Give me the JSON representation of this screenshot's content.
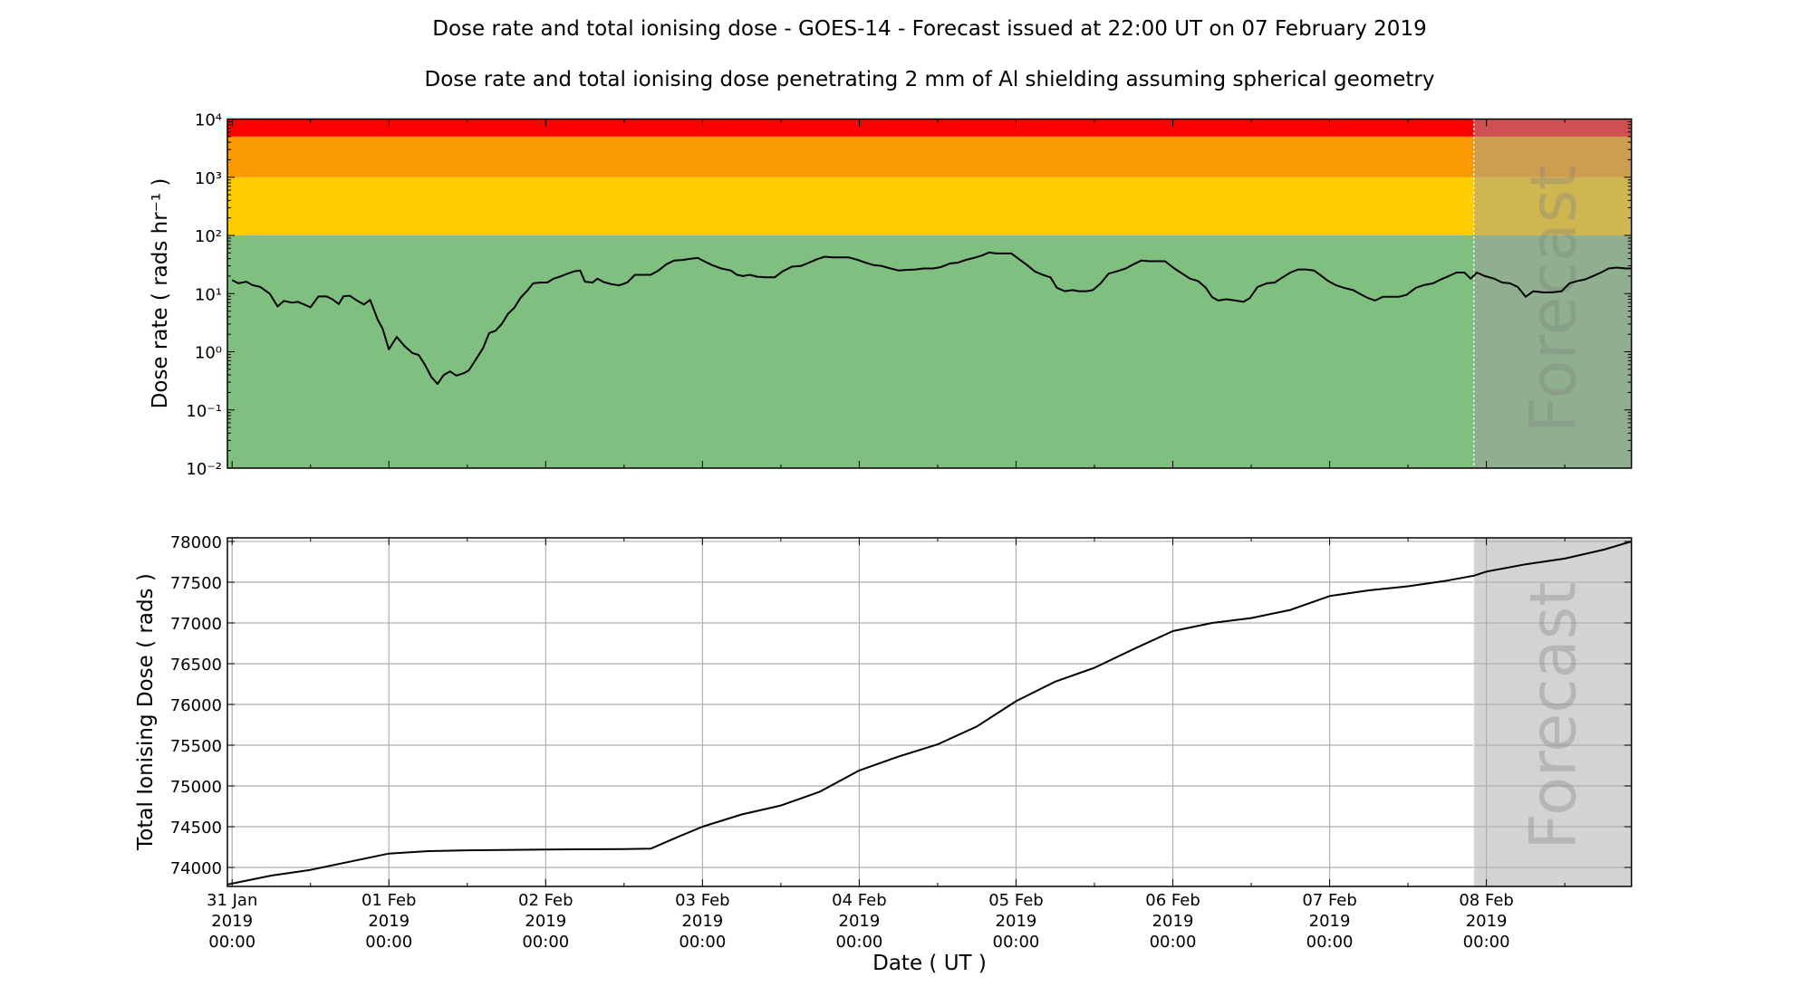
{
  "title": "Dose rate and total ionising dose - GOES-14 - Forecast issued at 22:00 UT on 07 February 2019",
  "subtitle": "Dose rate and total ionising dose penetrating 2 mm of Al shielding assuming spherical geometry",
  "forecast_label": "Forecast",
  "colors": {
    "red": "#ff0000",
    "orange": "#fb9a00",
    "yellow": "#ffcc00",
    "green": "#7fbf7f",
    "forecast_overlay": "#a0a0a0",
    "bottom_forecast": "#d3d3d3",
    "line": "#000000",
    "grid": "#b0b0b0"
  },
  "chart_data": [
    {
      "type": "line",
      "ylabel": "Dose rate ( rads hr⁻¹ )",
      "yscale": "log",
      "ylim": [
        0.01,
        10000
      ],
      "xlim_days_from_31_Jan_2019": [
        -0.03,
        8.925
      ],
      "ytick_labels": [
        "10⁻²",
        "10⁻¹",
        "10⁰",
        "10¹",
        "10²",
        "10³",
        "10⁴"
      ],
      "ytick_values": [
        0.01,
        0.1,
        1,
        10,
        100,
        1000,
        10000
      ],
      "grid": false,
      "forecast_start": "07 Feb 2019 22:00",
      "forecast_start_day": 7.92,
      "threshold_bands": [
        {
          "from": 0.01,
          "to": 100,
          "color": "#7fbf7f"
        },
        {
          "from": 100,
          "to": 1000,
          "color": "#ffcc00"
        },
        {
          "from": 1000,
          "to": 5000,
          "color": "#fb9a00"
        },
        {
          "from": 5000,
          "to": 10000,
          "color": "#ff0000"
        }
      ],
      "series": [
        {
          "x_days": [
            0,
            0.04,
            0.09,
            0.13,
            0.18,
            0.24,
            0.29,
            0.33,
            0.38,
            0.42,
            0.46,
            0.5,
            0.55,
            0.6,
            0.64,
            0.68,
            0.71,
            0.75,
            0.8,
            0.84,
            0.88,
            0.93,
            0.96,
            1.0,
            1.05,
            1.1,
            1.15,
            1.19,
            1.23,
            1.27,
            1.31,
            1.35,
            1.39,
            1.43,
            1.48,
            1.51,
            1.56,
            1.6,
            1.64,
            1.68,
            1.72,
            1.76,
            1.8,
            1.84,
            1.88,
            1.92,
            1.97,
            2.01,
            2.05,
            2.1,
            2.14,
            2.18,
            2.22,
            2.25,
            2.3,
            2.33,
            2.37,
            2.42,
            2.47,
            2.52,
            2.57,
            2.62,
            2.67,
            2.72,
            2.77,
            2.82,
            2.88,
            2.93,
            2.97,
            3.01,
            3.06,
            3.12,
            3.18,
            3.22,
            3.26,
            3.3,
            3.35,
            3.4,
            3.46,
            3.51,
            3.57,
            3.63,
            3.68,
            3.73,
            3.78,
            3.83,
            3.88,
            3.93,
            3.99,
            4.04,
            4.09,
            4.14,
            4.2,
            4.25,
            4.3,
            4.36,
            4.41,
            4.47,
            4.52,
            4.58,
            4.63,
            4.68,
            4.73,
            4.78,
            4.83,
            4.87,
            4.92,
            4.97,
            5.02,
            5.07,
            5.12,
            5.17,
            5.22,
            5.26,
            5.31,
            5.36,
            5.4,
            5.45,
            5.49,
            5.54,
            5.59,
            5.64,
            5.7,
            5.75,
            5.8,
            5.85,
            5.9,
            5.95,
            6.01,
            6.06,
            6.11,
            6.16,
            6.21,
            6.25,
            6.29,
            6.34,
            6.4,
            6.45,
            6.49,
            6.54,
            6.6,
            6.65,
            6.7,
            6.75,
            6.8,
            6.85,
            6.9,
            6.95,
            6.99,
            7.04,
            7.09,
            7.15,
            7.19,
            7.24,
            7.29,
            7.34,
            7.39,
            7.44,
            7.49,
            7.55,
            7.6,
            7.66,
            7.71,
            7.76,
            7.81,
            7.86,
            7.9,
            7.94,
            7.99,
            8.05,
            8.1,
            8.15,
            8.2,
            8.25,
            8.3,
            8.36,
            8.42,
            8.48,
            8.53,
            8.58,
            8.63,
            8.68,
            8.73,
            8.78,
            8.83,
            8.89,
            8.92
          ],
          "y": [
            17,
            15,
            16,
            14,
            13,
            10,
            6,
            7.5,
            7,
            7.2,
            6.5,
            5.8,
            8.9,
            9,
            8,
            6.6,
            9,
            9.2,
            7.5,
            6.5,
            7.8,
            3.5,
            2.5,
            1.1,
            1.8,
            1.25,
            0.95,
            0.88,
            0.6,
            0.37,
            0.28,
            0.4,
            0.46,
            0.39,
            0.43,
            0.48,
            0.78,
            1.15,
            2.1,
            2.3,
            3.0,
            4.5,
            5.7,
            8.5,
            11,
            15,
            15.5,
            15.5,
            18,
            20,
            22,
            24,
            25,
            16,
            15.5,
            18,
            15.8,
            14.5,
            13.9,
            15.5,
            21,
            21,
            21,
            25,
            32,
            37,
            38,
            40,
            41,
            36,
            31,
            27,
            25,
            21,
            20,
            21,
            19.5,
            19,
            19,
            24,
            29,
            30,
            34,
            39,
            43,
            42,
            42,
            42,
            38,
            34,
            31,
            30,
            27,
            25,
            25.5,
            26,
            27,
            27,
            28.5,
            33,
            34,
            38,
            41,
            45,
            51,
            49,
            49,
            49,
            39,
            31,
            24,
            21,
            19,
            12.6,
            11,
            11.5,
            11,
            11,
            11.5,
            15,
            22,
            24,
            27,
            32,
            37,
            36,
            36,
            36,
            27,
            22,
            18,
            16.5,
            12.6,
            8.7,
            7.6,
            8,
            7.6,
            7.2,
            8.3,
            13,
            15,
            15.5,
            19,
            23,
            26,
            26,
            25,
            20,
            16.5,
            14,
            12.6,
            11.5,
            10,
            8.5,
            7.6,
            8.8,
            8.8,
            8.8,
            9.5,
            12.6,
            14,
            15,
            17.5,
            20,
            23,
            23,
            18,
            23,
            20,
            18,
            15.5,
            15,
            13,
            8.8,
            11,
            10.5,
            10.5,
            11,
            15,
            16.5,
            17.5,
            20,
            23,
            27,
            28,
            27,
            27
          ]
        }
      ]
    },
    {
      "type": "line",
      "ylabel": "Total Ionising Dose ( rads )",
      "xlabel": "Date ( UT )",
      "ylim": [
        73767,
        78044
      ],
      "xlim_days_from_31_Jan_2019": [
        -0.03,
        8.925
      ],
      "ytick_labels": [
        "74000",
        "74500",
        "75000",
        "75500",
        "76000",
        "76500",
        "77000",
        "77500",
        "78000"
      ],
      "ytick_values": [
        74000,
        74500,
        75000,
        75500,
        76000,
        76500,
        77000,
        77500,
        78000
      ],
      "grid": true,
      "forecast_start_day": 7.92,
      "xtick_labels": [
        [
          "31 Jan",
          "2019",
          "00:00"
        ],
        [
          "01 Feb",
          "2019",
          "00:00"
        ],
        [
          "02 Feb",
          "2019",
          "00:00"
        ],
        [
          "03 Feb",
          "2019",
          "00:00"
        ],
        [
          "04 Feb",
          "2019",
          "00:00"
        ],
        [
          "05 Feb",
          "2019",
          "00:00"
        ],
        [
          "06 Feb",
          "2019",
          "00:00"
        ],
        [
          "07 Feb",
          "2019",
          "00:00"
        ],
        [
          "08 Feb",
          "2019",
          "00:00"
        ]
      ],
      "xtick_days": [
        0,
        1,
        2,
        3,
        4,
        5,
        6,
        7,
        8
      ],
      "series": [
        {
          "x_days": [
            -0.03,
            0.25,
            0.5,
            0.75,
            1.0,
            1.25,
            1.5,
            2.0,
            2.5,
            2.67,
            2.85,
            3.0,
            3.25,
            3.5,
            3.75,
            4.0,
            4.25,
            4.5,
            4.75,
            5.0,
            5.25,
            5.5,
            5.75,
            6.0,
            6.25,
            6.5,
            6.75,
            7.0,
            7.25,
            7.5,
            7.75,
            7.92,
            8.0,
            8.25,
            8.5,
            8.75,
            8.925
          ],
          "y": [
            73790,
            73900,
            73970,
            74070,
            74170,
            74200,
            74210,
            74220,
            74225,
            74230,
            74380,
            74500,
            74650,
            74760,
            74930,
            75190,
            75360,
            75510,
            75730,
            76040,
            76280,
            76450,
            76680,
            76900,
            77000,
            77060,
            77160,
            77330,
            77400,
            77450,
            77520,
            77580,
            77630,
            77720,
            77790,
            77900,
            78000
          ]
        }
      ]
    }
  ]
}
